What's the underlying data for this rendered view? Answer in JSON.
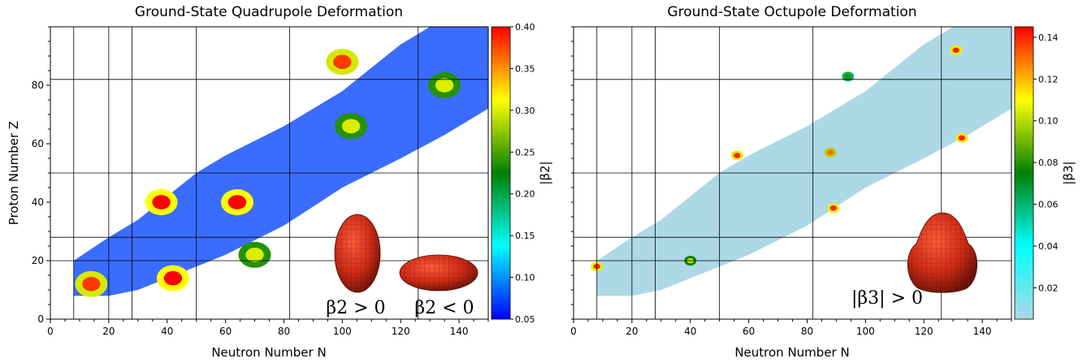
{
  "figure_title": "",
  "chart_data": [
    {
      "type": "heatmap",
      "title": "Ground-State Quadrupole Deformation",
      "xlabel": "Neutron Number N",
      "ylabel": "Proton Number Z",
      "xlim": [
        0,
        150
      ],
      "ylim": [
        0,
        100
      ],
      "xticks": [
        0,
        20,
        40,
        60,
        80,
        100,
        120,
        140
      ],
      "yticks": [
        0,
        20,
        40,
        60,
        80
      ],
      "magic_numbers_N": [
        8,
        20,
        28,
        50,
        82,
        126
      ],
      "magic_numbers_Z": [
        20,
        28,
        50,
        82
      ],
      "colorbar": {
        "label": "|β2|",
        "min": 0.05,
        "max": 0.4,
        "ticks": [
          "0.05",
          "0.10",
          "0.15",
          "0.20",
          "0.25",
          "0.30",
          "0.35",
          "0.40"
        ],
        "colormap": [
          "#0000ff",
          "#00ffff",
          "#008000",
          "#ffff00",
          "#ff0000"
        ]
      },
      "annotations": [
        "β2 > 0",
        "β2 < 0"
      ],
      "insets": [
        "prolate-ellipsoid",
        "oblate-ellipsoid"
      ],
      "region": {
        "lower_boundary_Z_vs_N": [
          [
            8,
            8
          ],
          [
            20,
            8
          ],
          [
            30,
            10
          ],
          [
            50,
            18
          ],
          [
            60,
            22
          ],
          [
            80,
            32
          ],
          [
            100,
            45
          ],
          [
            120,
            55
          ],
          [
            135,
            63
          ],
          [
            150,
            72
          ]
        ],
        "upper_boundary_Z_vs_N": [
          [
            8,
            20
          ],
          [
            20,
            28
          ],
          [
            30,
            34
          ],
          [
            40,
            42
          ],
          [
            50,
            50
          ],
          [
            60,
            56
          ],
          [
            80,
            66
          ],
          [
            100,
            78
          ],
          [
            110,
            86
          ],
          [
            120,
            94
          ],
          [
            130,
            100
          ],
          [
            150,
            100
          ]
        ]
      },
      "highlights": [
        {
          "N": 38,
          "Z": 40,
          "value": 0.4
        },
        {
          "N": 64,
          "Z": 40,
          "value": 0.4
        },
        {
          "N": 70,
          "Z": 22,
          "value": 0.3
        },
        {
          "N": 103,
          "Z": 66,
          "value": 0.3
        },
        {
          "N": 135,
          "Z": 80,
          "value": 0.3
        },
        {
          "N": 100,
          "Z": 88,
          "value": 0.38
        },
        {
          "N": 14,
          "Z": 12,
          "value": 0.38
        },
        {
          "N": 42,
          "Z": 14,
          "value": 0.4
        }
      ]
    },
    {
      "type": "heatmap",
      "title": "Ground-State Octupole Deformation",
      "xlabel": "Neutron Number N",
      "ylabel": "",
      "xlim": [
        0,
        150
      ],
      "ylim": [
        0,
        100
      ],
      "xticks": [
        0,
        20,
        40,
        60,
        80,
        100,
        120,
        140
      ],
      "magic_numbers_N": [
        8,
        20,
        28,
        50,
        82,
        126
      ],
      "magic_numbers_Z": [
        20,
        28,
        50,
        82
      ],
      "colorbar": {
        "label": "|β3|",
        "min": 0.005,
        "max": 0.145,
        "ticks": [
          "0.02",
          "0.04",
          "0.06",
          "0.08",
          "0.10",
          "0.12",
          "0.14"
        ],
        "colormap": [
          "#add8e6",
          "#00ffff",
          "#008000",
          "#ffff00",
          "#ff0000"
        ]
      },
      "annotations": [
        "|β3| > 0"
      ],
      "insets": [
        "pear-shape"
      ],
      "region_color": "#add8e6",
      "highlights": [
        {
          "N": 56,
          "Z": 56,
          "value": 0.14
        },
        {
          "N": 88,
          "Z": 57,
          "value": 0.13
        },
        {
          "N": 89,
          "Z": 38,
          "value": 0.14
        },
        {
          "N": 40,
          "Z": 20,
          "value": 0.1
        },
        {
          "N": 131,
          "Z": 92,
          "value": 0.14
        },
        {
          "N": 133,
          "Z": 62,
          "value": 0.14
        },
        {
          "N": 8,
          "Z": 18,
          "value": 0.14
        },
        {
          "N": 94,
          "Z": 83,
          "value": 0.08
        }
      ]
    }
  ]
}
